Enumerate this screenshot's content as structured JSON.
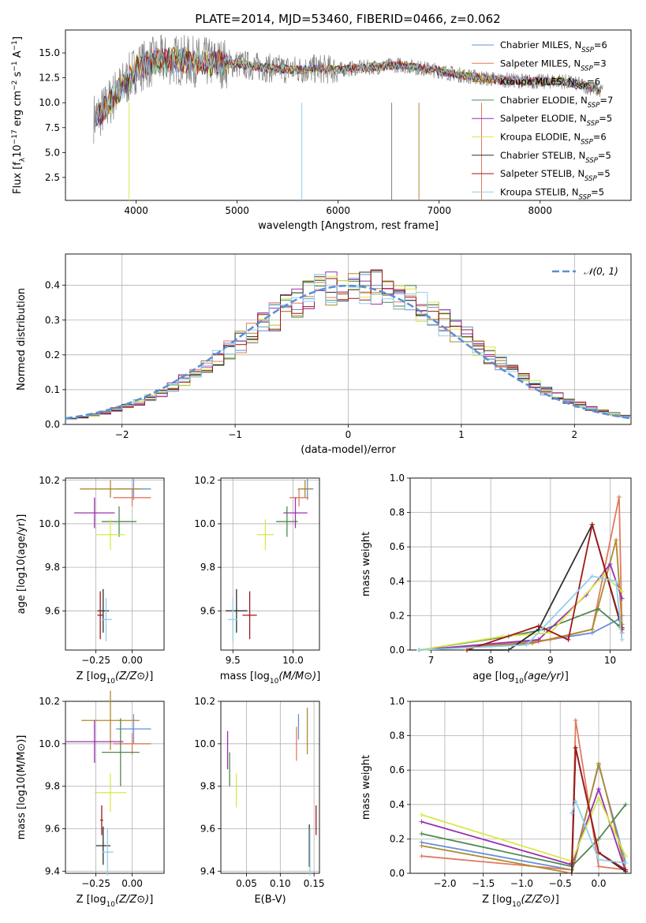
{
  "figure": {
    "title": "PLATE=2014, MJD=53460, FIBERID=0466, z=0.062"
  },
  "legend_series": [
    {
      "name": "Chabrier MILES, N",
      "sub": "SSP",
      "tail": "=6",
      "color": "#6a8fd8"
    },
    {
      "name": "Salpeter MILES, N",
      "sub": "SSP",
      "tail": "=3",
      "color": "#e07a5f"
    },
    {
      "name": "Kroupa MILES, N",
      "sub": "SSP",
      "tail": "=6",
      "color": "#b08a2e"
    },
    {
      "name": "Chabrier ELODIE, N",
      "sub": "SSP",
      "tail": "=7",
      "color": "#4f8a4f"
    },
    {
      "name": "Salpeter ELODIE, N",
      "sub": "SSP",
      "tail": "=5",
      "color": "#9b30b0"
    },
    {
      "name": "Kroupa ELODIE, N",
      "sub": "SSP",
      "tail": "=6",
      "color": "#d8e84a"
    },
    {
      "name": "Chabrier STELIB, N",
      "sub": "SSP",
      "tail": "=5",
      "color": "#303030"
    },
    {
      "name": "Salpeter STELIB, N",
      "sub": "SSP",
      "tail": "=5",
      "color": "#a01818"
    },
    {
      "name": "Kroupa STELIB, N",
      "sub": "SSP",
      "tail": "=5",
      "color": "#8fd0ec"
    }
  ],
  "chart_data": [
    {
      "id": "spectrum",
      "type": "line",
      "xlabel": "wavelength [Angstrom, rest frame]",
      "ylabel": "Flux [f_λ 10^-17 erg cm^-2 s^-1 A^-1]",
      "xlim": [
        3300,
        8900
      ],
      "ylim": [
        0.2,
        17.3
      ],
      "xticks": [
        "4000",
        "5000",
        "6000",
        "7000",
        "8000"
      ],
      "yticks": [
        "2.5",
        "5.0",
        "7.5",
        "10.0",
        "12.5",
        "15.0"
      ],
      "continuum_x": [
        3600,
        3700,
        3800,
        3900,
        4000,
        4200,
        4400,
        4600,
        4800,
        5000,
        5200,
        5400,
        5600,
        5800,
        6000,
        6200,
        6400,
        6600,
        6800,
        7000,
        7200,
        7400,
        7600,
        7800,
        8000,
        8200,
        8400,
        8600
      ],
      "continuum_y": [
        8.5,
        9.5,
        11.0,
        12.0,
        13.5,
        14.2,
        14.3,
        14.1,
        14.0,
        13.9,
        13.6,
        13.4,
        13.3,
        13.4,
        13.3,
        13.5,
        13.6,
        13.8,
        13.5,
        13.2,
        12.8,
        12.5,
        12.3,
        12.2,
        12.1,
        12.2,
        11.8,
        11.2
      ]
    },
    {
      "id": "residuals",
      "type": "histogram",
      "xlabel": "(data-model)/error",
      "ylabel": "Normed distribution",
      "xlim": [
        -2.5,
        2.5
      ],
      "ylim": [
        0,
        0.49
      ],
      "xticks": [
        "−2",
        "−1",
        "0",
        "1",
        "2"
      ],
      "yticks": [
        "0.0",
        "0.1",
        "0.2",
        "0.3",
        "0.4"
      ],
      "legend": "𝒩(0, 1)",
      "bin_width": 0.1,
      "bins_start": -2.5
    },
    {
      "id": "age_vs_Z",
      "type": "scatter",
      "xlabel": "Z [log10(Z/Z⊙)]",
      "ylabel": "age  [log10(age/yr)]",
      "xlim": [
        -0.46,
        0.22
      ],
      "ylim": [
        9.42,
        10.21
      ],
      "xticks": [
        "−0.25",
        "0.00"
      ],
      "yticks": [
        "9.6",
        "9.8",
        "10.0",
        "10.2"
      ],
      "points": [
        {
          "x": 0.01,
          "y": 10.16,
          "xerr": 0.12,
          "yerr": 0.05
        },
        {
          "x": 0.0,
          "y": 10.12,
          "xerr": 0.13,
          "yerr": 0.04
        },
        {
          "x": -0.15,
          "y": 10.16,
          "xerr": 0.21,
          "yerr": 0.04
        },
        {
          "x": -0.09,
          "y": 10.01,
          "xerr": 0.12,
          "yerr": 0.07
        },
        {
          "x": -0.26,
          "y": 10.05,
          "xerr": 0.14,
          "yerr": 0.07
        },
        {
          "x": -0.15,
          "y": 9.95,
          "xerr": 0.1,
          "yerr": 0.07
        },
        {
          "x": -0.2,
          "y": 9.6,
          "xerr": 0.04,
          "yerr": 0.1
        },
        {
          "x": -0.22,
          "y": 9.58,
          "xerr": 0.02,
          "yerr": 0.11
        },
        {
          "x": -0.18,
          "y": 9.56,
          "xerr": 0.04,
          "yerr": 0.1
        }
      ]
    },
    {
      "id": "age_vs_mass",
      "type": "scatter",
      "xlabel": "mass [log10(M/M⊙)]",
      "ylabel": "",
      "xlim": [
        9.4,
        10.22
      ],
      "ylim": [
        9.42,
        10.21
      ],
      "xticks": [
        "9.5",
        "10.0"
      ],
      "yticks": [
        "9.6",
        "9.8",
        "10.0",
        "10.2"
      ],
      "points": [
        {
          "x": 10.12,
          "y": 10.16,
          "xerr": 0.05,
          "yerr": 0.05
        },
        {
          "x": 10.05,
          "y": 10.12,
          "xerr": 0.08,
          "yerr": 0.04
        },
        {
          "x": 10.1,
          "y": 10.16,
          "xerr": 0.06,
          "yerr": 0.04
        },
        {
          "x": 9.95,
          "y": 10.01,
          "xerr": 0.09,
          "yerr": 0.07
        },
        {
          "x": 10.02,
          "y": 10.05,
          "xerr": 0.1,
          "yerr": 0.07
        },
        {
          "x": 9.77,
          "y": 9.95,
          "xerr": 0.07,
          "yerr": 0.07
        },
        {
          "x": 9.53,
          "y": 9.6,
          "xerr": 0.09,
          "yerr": 0.1
        },
        {
          "x": 9.64,
          "y": 9.58,
          "xerr": 0.06,
          "yerr": 0.11
        },
        {
          "x": 9.5,
          "y": 9.56,
          "xerr": 0.04,
          "yerr": 0.1
        }
      ]
    },
    {
      "id": "weight_vs_age",
      "type": "line",
      "xlabel": "age  [log10(age/yr)]",
      "ylabel": "mass weight",
      "xlim": [
        6.65,
        10.35
      ],
      "ylim": [
        0,
        1.0
      ],
      "xticks": [
        "7",
        "8",
        "9",
        "10"
      ],
      "yticks": [
        "0.0",
        "0.2",
        "0.4",
        "0.6",
        "0.8",
        "1.0"
      ],
      "series": [
        {
          "x": [
            6.8,
            8.8,
            9.7,
            10.15,
            10.2
          ],
          "y": [
            0.0,
            0.05,
            0.1,
            0.18,
            0.2
          ]
        },
        {
          "x": [
            6.8,
            9.0,
            9.7,
            10.15,
            10.2
          ],
          "y": [
            0.0,
            0.06,
            0.12,
            0.89,
            0.1
          ]
        },
        {
          "x": [
            6.8,
            8.7,
            9.7,
            10.1,
            10.2
          ],
          "y": [
            0.0,
            0.04,
            0.12,
            0.64,
            0.15
          ]
        },
        {
          "x": [
            6.8,
            8.3,
            8.9,
            9.8,
            10.15
          ],
          "y": [
            0.0,
            0.08,
            0.12,
            0.24,
            0.14
          ]
        },
        {
          "x": [
            6.8,
            8.8,
            9.6,
            10.0,
            10.2
          ],
          "y": [
            0.0,
            0.06,
            0.32,
            0.5,
            0.3
          ]
        },
        {
          "x": [
            6.8,
            8.2,
            9.0,
            9.9,
            10.2
          ],
          "y": [
            0.0,
            0.08,
            0.1,
            0.44,
            0.34
          ]
        },
        {
          "x": [
            7.6,
            8.3,
            8.8,
            9.7,
            10.2
          ],
          "y": [
            0.0,
            0.0,
            0.12,
            0.73,
            0.12
          ]
        },
        {
          "x": [
            7.6,
            8.8,
            9.3,
            9.7,
            10.2
          ],
          "y": [
            0.0,
            0.14,
            0.06,
            0.73,
            0.13
          ]
        },
        {
          "x": [
            6.8,
            8.6,
            9.7,
            10.1,
            10.2
          ],
          "y": [
            0.0,
            0.03,
            0.43,
            0.4,
            0.06
          ]
        }
      ]
    },
    {
      "id": "mass_vs_Z",
      "type": "scatter",
      "xlabel": "Z [log10(Z/Z⊙)]",
      "ylabel": "mass [log10(M/M⊙)]",
      "xlim": [
        -0.46,
        0.22
      ],
      "ylim": [
        9.39,
        10.2
      ],
      "xticks": [
        "−0.25",
        "0.00"
      ],
      "yticks": [
        "9.4",
        "9.6",
        "9.8",
        "10.0",
        "10.2"
      ],
      "points": [
        {
          "x": 0.01,
          "y": 10.07,
          "xerr": 0.12,
          "yerr": 0.07
        },
        {
          "x": 0.0,
          "y": 10.0,
          "xerr": 0.13,
          "yerr": 0.05
        },
        {
          "x": -0.15,
          "y": 10.11,
          "xerr": 0.2,
          "yerr": 0.14
        },
        {
          "x": -0.08,
          "y": 9.96,
          "xerr": 0.13,
          "yerr": 0.16
        },
        {
          "x": -0.26,
          "y": 10.01,
          "xerr": 0.2,
          "yerr": 0.1
        },
        {
          "x": -0.15,
          "y": 9.77,
          "xerr": 0.11,
          "yerr": 0.09
        },
        {
          "x": -0.2,
          "y": 9.52,
          "xerr": 0.05,
          "yerr": 0.09
        },
        {
          "x": -0.21,
          "y": 9.64,
          "xerr": 0.01,
          "yerr": 0.07
        },
        {
          "x": -0.17,
          "y": 9.49,
          "xerr": 0.04,
          "yerr": 0.11
        }
      ]
    },
    {
      "id": "mass_vs_ebv",
      "type": "scatter",
      "xlabel": "E(B-V)",
      "ylabel": "",
      "xlim": [
        0.012,
        0.158
      ],
      "ylim": [
        9.39,
        10.2
      ],
      "xticks": [
        "0.05",
        "0.10",
        "0.15"
      ],
      "yticks": [
        "9.4",
        "9.6",
        "9.8",
        "10.0",
        "10.2"
      ],
      "points": [
        {
          "x": 0.127,
          "y": 10.08,
          "yerr": 0.06
        },
        {
          "x": 0.124,
          "y": 10.0,
          "yerr": 0.08
        },
        {
          "x": 0.14,
          "y": 10.06,
          "yerr": 0.11
        },
        {
          "x": 0.025,
          "y": 9.88,
          "yerr": 0.08
        },
        {
          "x": 0.022,
          "y": 9.97,
          "yerr": 0.09
        },
        {
          "x": 0.035,
          "y": 9.78,
          "yerr": 0.08
        },
        {
          "x": 0.143,
          "y": 9.52,
          "yerr": 0.1
        },
        {
          "x": 0.153,
          "y": 9.64,
          "yerr": 0.07
        },
        {
          "x": 0.144,
          "y": 9.49,
          "yerr": 0.11
        }
      ]
    },
    {
      "id": "weight_vs_Z",
      "type": "line",
      "xlabel": "Z [log10(Z/Z⊙)]",
      "ylabel": "mass weight",
      "xlim": [
        -2.45,
        0.42
      ],
      "ylim": [
        0,
        1.0
      ],
      "xticks": [
        "−2.0",
        "−1.5",
        "−1.0",
        "−0.5",
        "0.0"
      ],
      "yticks": [
        "0.0",
        "0.2",
        "0.4",
        "0.6",
        "0.8",
        "1.0"
      ],
      "series": [
        {
          "x": [
            -2.3,
            -0.35,
            0.0,
            0.35
          ],
          "y": [
            0.18,
            0.02,
            0.63,
            0.06
          ]
        },
        {
          "x": [
            -2.3,
            -0.35,
            -0.3,
            0.0,
            0.35
          ],
          "y": [
            0.1,
            0.02,
            0.89,
            0.04,
            0.02
          ]
        },
        {
          "x": [
            -2.3,
            -0.35,
            0.0,
            0.35
          ],
          "y": [
            0.16,
            0.0,
            0.64,
            0.02
          ]
        },
        {
          "x": [
            -2.3,
            -0.35,
            0.0,
            0.35
          ],
          "y": [
            0.23,
            0.04,
            0.2,
            0.4
          ]
        },
        {
          "x": [
            -2.3,
            -0.35,
            0.0,
            0.35
          ],
          "y": [
            0.3,
            0.05,
            0.49,
            0.01
          ]
        },
        {
          "x": [
            -2.3,
            -0.35,
            0.0,
            0.35
          ],
          "y": [
            0.34,
            0.07,
            0.44,
            0.1
          ]
        },
        {
          "x": [
            -0.35,
            -0.3,
            0.0,
            0.35
          ],
          "y": [
            0.0,
            0.73,
            0.12,
            0.01
          ]
        },
        {
          "x": [
            -0.35,
            -0.3,
            0.0,
            0.35
          ],
          "y": [
            0.06,
            0.73,
            0.12,
            0.02
          ]
        },
        {
          "x": [
            -0.35,
            -0.3,
            0.0,
            0.35
          ],
          "y": [
            0.35,
            0.42,
            0.08,
            0.06
          ]
        }
      ]
    }
  ]
}
